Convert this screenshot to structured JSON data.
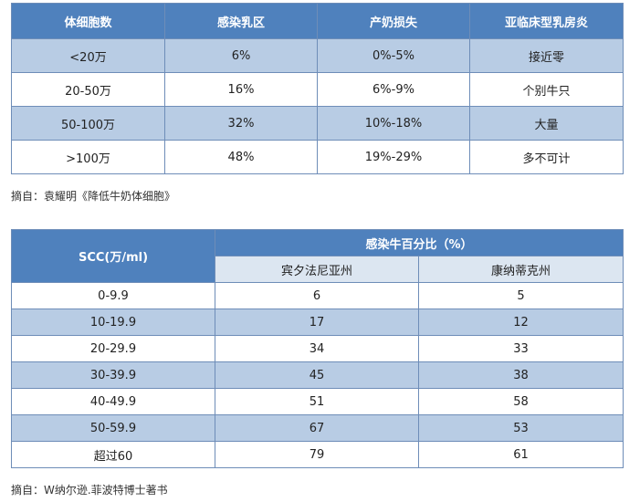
{
  "table1": {
    "headers": [
      "体细胞数",
      "感染乳区",
      "产奶损失",
      "亚临床型乳房炎"
    ],
    "rows": [
      [
        "<20万",
        "6%",
        "0%-5%",
        "接近零"
      ],
      [
        "20-50万",
        "16%",
        "6%-9%",
        "个别牛只"
      ],
      [
        "50-100万",
        "32%",
        "10%-18%",
        "大量"
      ],
      [
        ">100万",
        "48%",
        "19%-29%",
        "多不可计"
      ]
    ]
  },
  "caption1": "摘自：袁耀明《降低牛奶体细胞》",
  "table2": {
    "header_scc": "SCC(万/ml)",
    "header_group": "感染牛百分比（%）",
    "sub_headers": [
      "宾夕法尼亚州",
      "康纳蒂克州"
    ],
    "rows": [
      [
        "0-9.9",
        "6",
        "5"
      ],
      [
        "10-19.9",
        "17",
        "12"
      ],
      [
        "20-29.9",
        "34",
        "33"
      ],
      [
        "30-39.9",
        "45",
        "38"
      ],
      [
        "40-49.9",
        "51",
        "58"
      ],
      [
        "50-59.9",
        "67",
        "53"
      ],
      [
        "超过60",
        "79",
        "61"
      ]
    ]
  },
  "caption2": "摘自：W纳尔逊.菲波特博士著书",
  "colors": {
    "header_bg": "#4f81bd",
    "band_bg": "#b8cce4",
    "subheader_bg": "#dce6f1",
    "border": "#6e8db8"
  }
}
